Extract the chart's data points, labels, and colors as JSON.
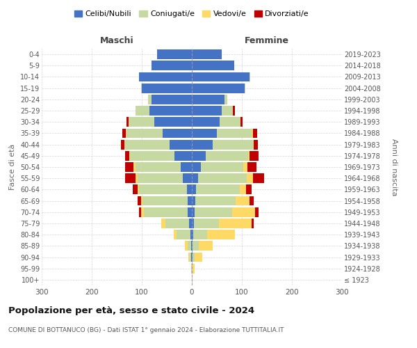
{
  "age_groups": [
    "100+",
    "95-99",
    "90-94",
    "85-89",
    "80-84",
    "75-79",
    "70-74",
    "65-69",
    "60-64",
    "55-59",
    "50-54",
    "45-49",
    "40-44",
    "35-39",
    "30-34",
    "25-29",
    "20-24",
    "15-19",
    "10-14",
    "5-9",
    "0-4"
  ],
  "birth_years": [
    "≤ 1923",
    "1924-1928",
    "1929-1933",
    "1934-1938",
    "1939-1943",
    "1944-1948",
    "1949-1953",
    "1954-1958",
    "1959-1963",
    "1964-1968",
    "1969-1973",
    "1974-1978",
    "1979-1983",
    "1984-1988",
    "1989-1993",
    "1994-1998",
    "1999-2003",
    "2004-2008",
    "2009-2013",
    "2014-2018",
    "2019-2023"
  ],
  "males": {
    "celibi": [
      0,
      0,
      1,
      1,
      3,
      5,
      8,
      8,
      10,
      18,
      22,
      35,
      45,
      58,
      75,
      85,
      80,
      100,
      105,
      80,
      70
    ],
    "coniugati": [
      0,
      1,
      3,
      8,
      28,
      48,
      88,
      90,
      95,
      90,
      90,
      88,
      88,
      72,
      52,
      28,
      8,
      2,
      1,
      0,
      0
    ],
    "vedovi": [
      0,
      1,
      3,
      5,
      5,
      8,
      5,
      4,
      4,
      4,
      4,
      2,
      2,
      2,
      0,
      0,
      0,
      0,
      0,
      0,
      0
    ],
    "divorziati": [
      0,
      0,
      0,
      0,
      0,
      0,
      4,
      7,
      9,
      22,
      18,
      9,
      7,
      7,
      4,
      0,
      0,
      0,
      0,
      0,
      0
    ]
  },
  "females": {
    "nubili": [
      0,
      0,
      1,
      2,
      3,
      4,
      6,
      7,
      8,
      12,
      18,
      28,
      42,
      50,
      55,
      60,
      65,
      105,
      115,
      85,
      60
    ],
    "coniugate": [
      0,
      1,
      4,
      12,
      28,
      50,
      75,
      80,
      88,
      98,
      85,
      85,
      80,
      70,
      42,
      22,
      6,
      2,
      1,
      0,
      0
    ],
    "vedove": [
      1,
      4,
      16,
      28,
      55,
      65,
      45,
      28,
      12,
      12,
      8,
      2,
      2,
      2,
      0,
      0,
      0,
      0,
      0,
      0,
      0
    ],
    "divorziate": [
      0,
      0,
      0,
      0,
      0,
      4,
      7,
      9,
      12,
      22,
      18,
      18,
      8,
      8,
      4,
      4,
      0,
      0,
      0,
      0,
      0
    ]
  },
  "colors": {
    "celibi": "#4472c4",
    "coniugati": "#c5d9a0",
    "vedovi": "#ffd966",
    "divorziati": "#c00000"
  },
  "legend_labels": [
    "Celibi/Nubili",
    "Coniugati/e",
    "Vedovi/e",
    "Divorziati/e"
  ],
  "title": "Popolazione per età, sesso e stato civile - 2024",
  "subtitle": "COMUNE DI BOTTANUCO (BG) - Dati ISTAT 1° gennaio 2024 - Elaborazione TUTTITALIA.IT",
  "xlabel_left": "Maschi",
  "xlabel_right": "Femmine",
  "ylabel_left": "Fasce di età",
  "ylabel_right": "Anni di nascita",
  "xlim": 300,
  "bg_color": "#ffffff",
  "grid_color": "#cccccc",
  "bar_height": 0.85
}
